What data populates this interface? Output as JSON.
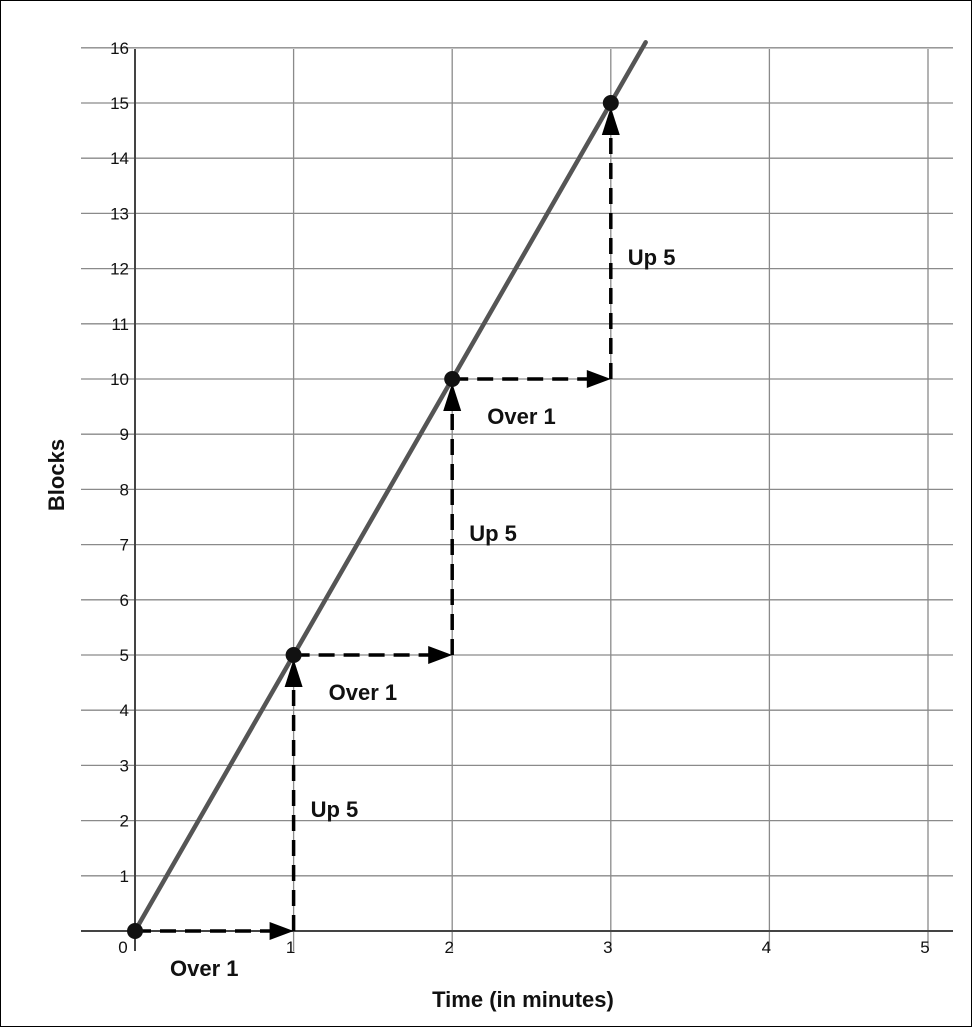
{
  "chart_data": {
    "type": "line",
    "xlabel": "Time (in minutes)",
    "ylabel": "Blocks",
    "xlim": [
      0,
      5
    ],
    "ylim": [
      0,
      16
    ],
    "x_ticks": [
      0,
      1,
      2,
      3,
      4,
      5
    ],
    "y_ticks": [
      1,
      2,
      3,
      4,
      5,
      6,
      7,
      8,
      9,
      10,
      11,
      12,
      13,
      14,
      15,
      16
    ],
    "x_gridlines": [
      0,
      1,
      2,
      3,
      4,
      5
    ],
    "grid": true,
    "series": [
      {
        "line_color": "#555555",
        "slope": 5,
        "intercept": 0,
        "line_x_range": [
          0,
          3.22
        ],
        "points": [
          {
            "x": 0,
            "y": 0
          },
          {
            "x": 1,
            "y": 5
          },
          {
            "x": 2,
            "y": 10
          },
          {
            "x": 3,
            "y": 15
          }
        ]
      }
    ],
    "annotations": [
      {
        "kind": "over",
        "from": [
          0,
          0
        ],
        "to": [
          1,
          0
        ],
        "label": "Over 1"
      },
      {
        "kind": "up",
        "from": [
          1,
          0
        ],
        "to": [
          1,
          5
        ],
        "label": "Up 5"
      },
      {
        "kind": "over",
        "from": [
          1,
          5
        ],
        "to": [
          2,
          5
        ],
        "label": "Over 1"
      },
      {
        "kind": "up",
        "from": [
          2,
          5
        ],
        "to": [
          2,
          10
        ],
        "label": "Up 5"
      },
      {
        "kind": "over",
        "from": [
          2,
          10
        ],
        "to": [
          3,
          10
        ],
        "label": "Over 1"
      },
      {
        "kind": "up",
        "from": [
          3,
          10
        ],
        "to": [
          3,
          15
        ],
        "label": "Up 5"
      }
    ]
  }
}
